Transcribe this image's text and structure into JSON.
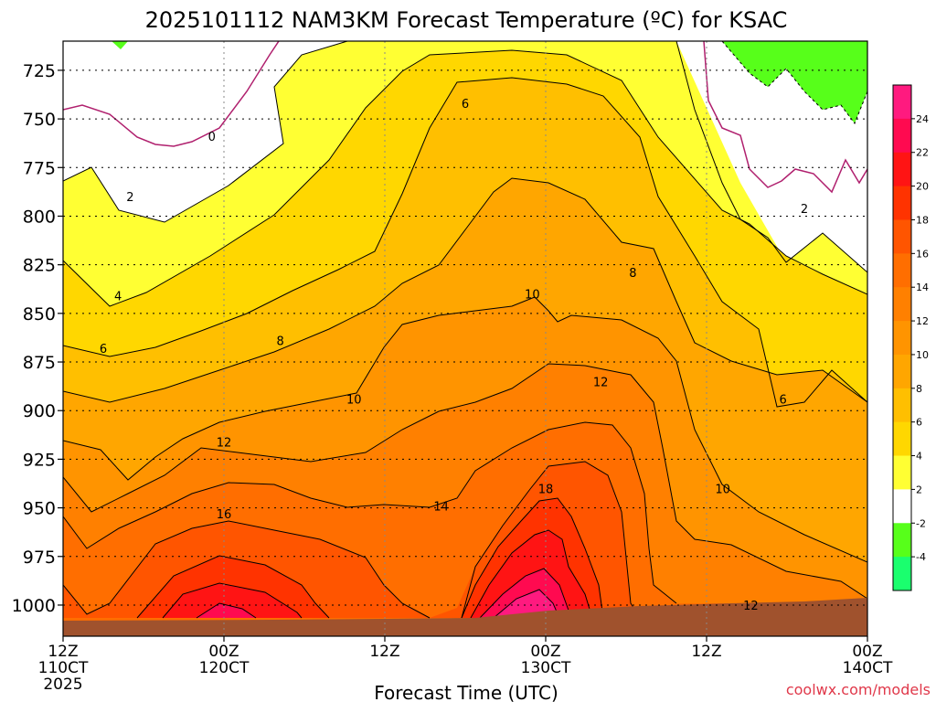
{
  "chart_data": {
    "type": "contour",
    "title": "2025101112 NAM3KM Forecast Temperature (ºC) for KSAC",
    "xlabel": "Forecast Time (UTC)",
    "ylabel": "",
    "credit": "coolwx.com/models",
    "y_axis": {
      "ticks": [
        "725",
        "750",
        "775",
        "800",
        "825",
        "850",
        "875",
        "900",
        "925",
        "950",
        "975",
        "1000"
      ],
      "values": [
        725,
        750,
        775,
        800,
        825,
        850,
        875,
        900,
        925,
        950,
        975,
        1000
      ],
      "range": [
        710,
        1016
      ]
    },
    "x_axis": {
      "range_hours": [
        0,
        60
      ],
      "ticks": [
        {
          "hour": 0,
          "line1": "12Z",
          "line2": "110CT",
          "line3": "2025"
        },
        {
          "hour": 12,
          "line1": "00Z",
          "line2": "120CT",
          "line3": ""
        },
        {
          "hour": 24,
          "line1": "12Z",
          "line2": "",
          "line3": ""
        },
        {
          "hour": 36,
          "line1": "00Z",
          "line2": "130CT",
          "line3": ""
        },
        {
          "hour": 48,
          "line1": "12Z",
          "line2": "",
          "line3": ""
        },
        {
          "hour": 60,
          "line1": "00Z",
          "line2": "140CT",
          "line3": ""
        }
      ]
    },
    "colorbar": {
      "levels": [
        "24",
        "22",
        "20",
        "18",
        "16",
        "14",
        "12",
        "10",
        "8",
        "6",
        "4",
        "2",
        "-2",
        "-4"
      ],
      "colors": [
        "#ff1a7f",
        "#ff0a50",
        "#ff1414",
        "#ff3300",
        "#ff5500",
        "#ff6e00",
        "#ff8000",
        "#ff9400",
        "#ffa600",
        "#ffbf00",
        "#ffd700",
        "#ffff33",
        "#ffffff",
        "#57ff1a",
        "#1aff6e"
      ]
    },
    "contour_labels": [
      {
        "text": "0",
        "hour": 11.1,
        "p": 759
      },
      {
        "text": "2",
        "hour": 5.0,
        "p": 790
      },
      {
        "text": "6",
        "hour": 30.0,
        "p": 742
      },
      {
        "text": "2",
        "hour": 55.3,
        "p": 796
      },
      {
        "text": "8",
        "hour": 42.5,
        "p": 829
      },
      {
        "text": "4",
        "hour": 4.1,
        "p": 841
      },
      {
        "text": "10",
        "hour": 35.0,
        "p": 840
      },
      {
        "text": "6",
        "hour": 3.0,
        "p": 868
      },
      {
        "text": "8",
        "hour": 16.2,
        "p": 864
      },
      {
        "text": "12",
        "hour": 40.1,
        "p": 885
      },
      {
        "text": "10",
        "hour": 21.7,
        "p": 894
      },
      {
        "text": "6",
        "hour": 53.7,
        "p": 894
      },
      {
        "text": "12",
        "hour": 12.0,
        "p": 916
      },
      {
        "text": "10",
        "hour": 49.2,
        "p": 940
      },
      {
        "text": "18",
        "hour": 36.0,
        "p": 940
      },
      {
        "text": "14",
        "hour": 28.2,
        "p": 949
      },
      {
        "text": "16",
        "hour": 12.0,
        "p": 953
      },
      {
        "text": "12",
        "hour": 51.3,
        "p": 1000
      }
    ]
  }
}
